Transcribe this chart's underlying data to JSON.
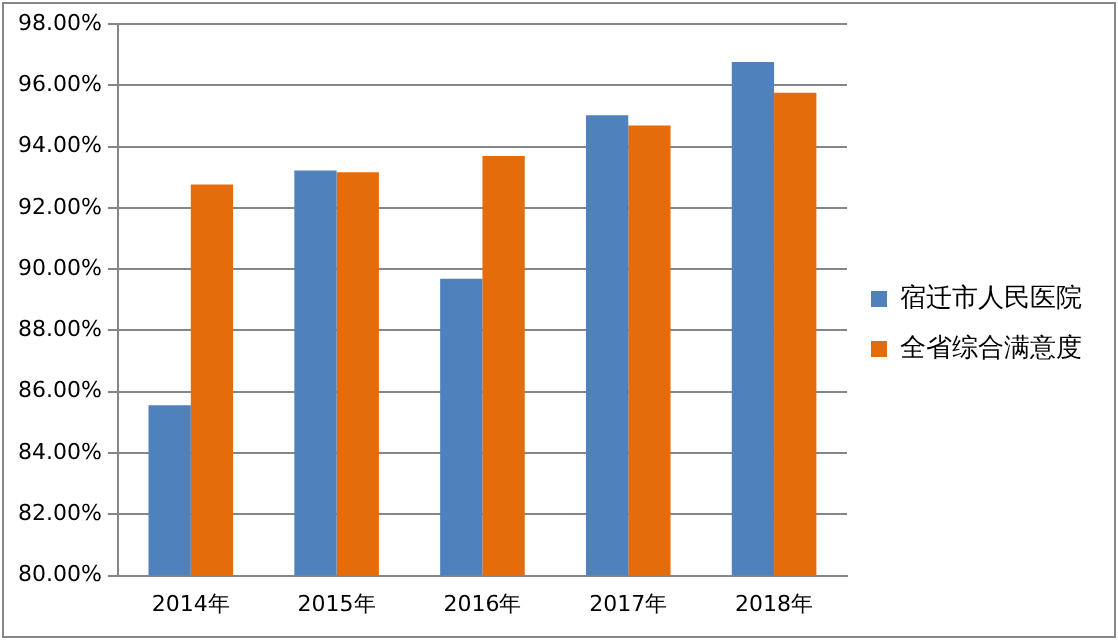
{
  "chart_data": {
    "type": "bar",
    "categories": [
      "2014年",
      "2015年",
      "2016年",
      "2017年",
      "2018年"
    ],
    "series": [
      {
        "name": "宿迁市人民医院",
        "color": "#4f81bd",
        "values": [
          85.56,
          93.22,
          89.69,
          95.02,
          96.76
        ]
      },
      {
        "name": "全省综合满意度",
        "color": "#e46c0a",
        "values": [
          92.76,
          93.16,
          93.69,
          94.69,
          95.76
        ]
      }
    ],
    "ylim": [
      80,
      98
    ],
    "yticks": [
      {
        "value": 80,
        "label": "80.00%"
      },
      {
        "value": 82,
        "label": "82.00%"
      },
      {
        "value": 84,
        "label": "84.00%"
      },
      {
        "value": 86,
        "label": "86.00%"
      },
      {
        "value": 88,
        "label": "88.00%"
      },
      {
        "value": 90,
        "label": "90.00%"
      },
      {
        "value": 92,
        "label": "92.00%"
      },
      {
        "value": 94,
        "label": "94.00%"
      },
      {
        "value": 96,
        "label": "96.00%"
      },
      {
        "value": 98,
        "label": "98.00%"
      }
    ],
    "grid": "y",
    "legend": "right"
  }
}
